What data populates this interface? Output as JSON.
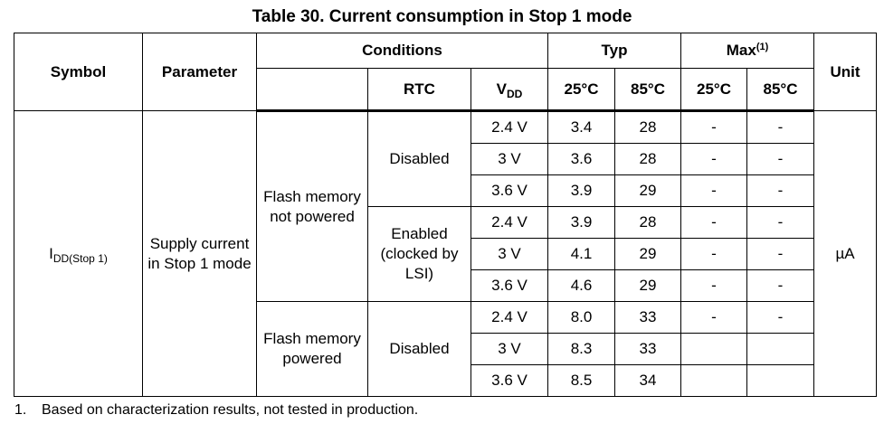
{
  "title": "Table 30. Current consumption in Stop 1 mode",
  "headers": {
    "symbol": "Symbol",
    "parameter": "Parameter",
    "conditions": "Conditions",
    "typ": "Typ",
    "max": "Max",
    "max_sup": "(1)",
    "unit": "Unit",
    "rtc": "RTC",
    "vdd_main": "V",
    "vdd_sub": "DD",
    "t25_typ": "25°C",
    "t85_typ": "85°C",
    "t25_max": "25°C",
    "t85_max": "85°C"
  },
  "row_group": {
    "symbol_main": "I",
    "symbol_sub": "DD(Stop 1)",
    "parameter": "Supply current in Stop 1 mode",
    "unit": "µA",
    "flash_not_powered": "Flash memory not powered",
    "flash_powered": "Flash memory powered",
    "rtc_disabled": "Disabled",
    "rtc_enabled": "Enabled (clocked by LSI)",
    "rtc_disabled_2": "Disabled"
  },
  "rows": [
    {
      "vdd": "2.4 V",
      "typ25": "3.4",
      "typ85": "28",
      "max25": "-",
      "max85": "-"
    },
    {
      "vdd": "3 V",
      "typ25": "3.6",
      "typ85": "28",
      "max25": "-",
      "max85": "-"
    },
    {
      "vdd": "3.6 V",
      "typ25": "3.9",
      "typ85": "29",
      "max25": "-",
      "max85": "-"
    },
    {
      "vdd": "2.4 V",
      "typ25": "3.9",
      "typ85": "28",
      "max25": "-",
      "max85": "-"
    },
    {
      "vdd": "3 V",
      "typ25": "4.1",
      "typ85": "29",
      "max25": "-",
      "max85": "-"
    },
    {
      "vdd": "3.6 V",
      "typ25": "4.6",
      "typ85": "29",
      "max25": "-",
      "max85": "-"
    },
    {
      "vdd": "2.4 V",
      "typ25": "8.0",
      "typ85": "33",
      "max25": "-",
      "max85": "-"
    },
    {
      "vdd": "3 V",
      "typ25": "8.3",
      "typ85": "33",
      "max25": "",
      "max85": ""
    },
    {
      "vdd": "3.6 V",
      "typ25": "8.5",
      "typ85": "34",
      "max25": "",
      "max85": ""
    }
  ],
  "footnote": {
    "number": "1.",
    "text": "Based on characterization results, not tested in production."
  }
}
